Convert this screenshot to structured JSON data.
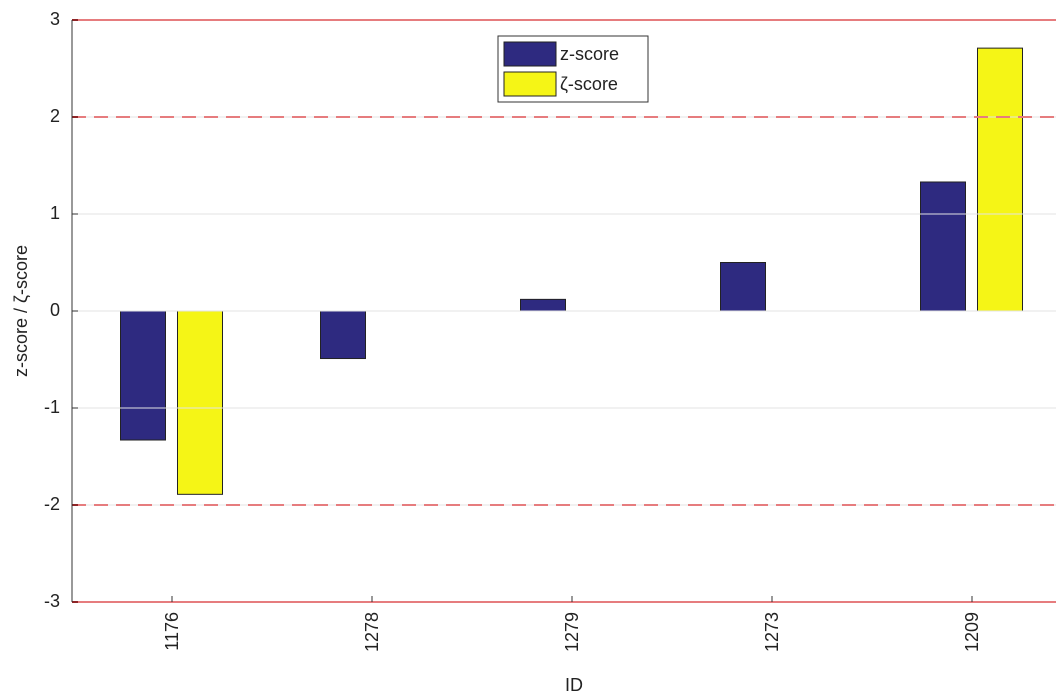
{
  "chart_data": {
    "type": "bar",
    "x_label": "ID",
    "y_label": "z-score / ζ-score",
    "categories": [
      "1176",
      "1278",
      "1279",
      "1273",
      "1209"
    ],
    "series": [
      {
        "name": "z-score",
        "color": "#2e2a80",
        "values": [
          -1.33,
          -0.49,
          0.12,
          0.5,
          1.33
        ]
      },
      {
        "name": "ζ-score",
        "color": "#f5f516",
        "values": [
          -1.89,
          0,
          0,
          0,
          2.71
        ]
      }
    ],
    "ylim": [
      -3,
      3
    ],
    "yticks": [
      -3,
      -2,
      -1,
      0,
      1,
      2,
      3
    ],
    "grid": true,
    "legend": "top",
    "hlines": [
      {
        "value": 3,
        "style": "solid",
        "color": "#e8141a"
      },
      {
        "value": 2,
        "style": "dashed",
        "color": "#e8141a"
      },
      {
        "value": -2,
        "style": "dashed",
        "color": "#e8141a"
      },
      {
        "value": -3,
        "style": "solid",
        "color": "#e8141a"
      }
    ]
  }
}
